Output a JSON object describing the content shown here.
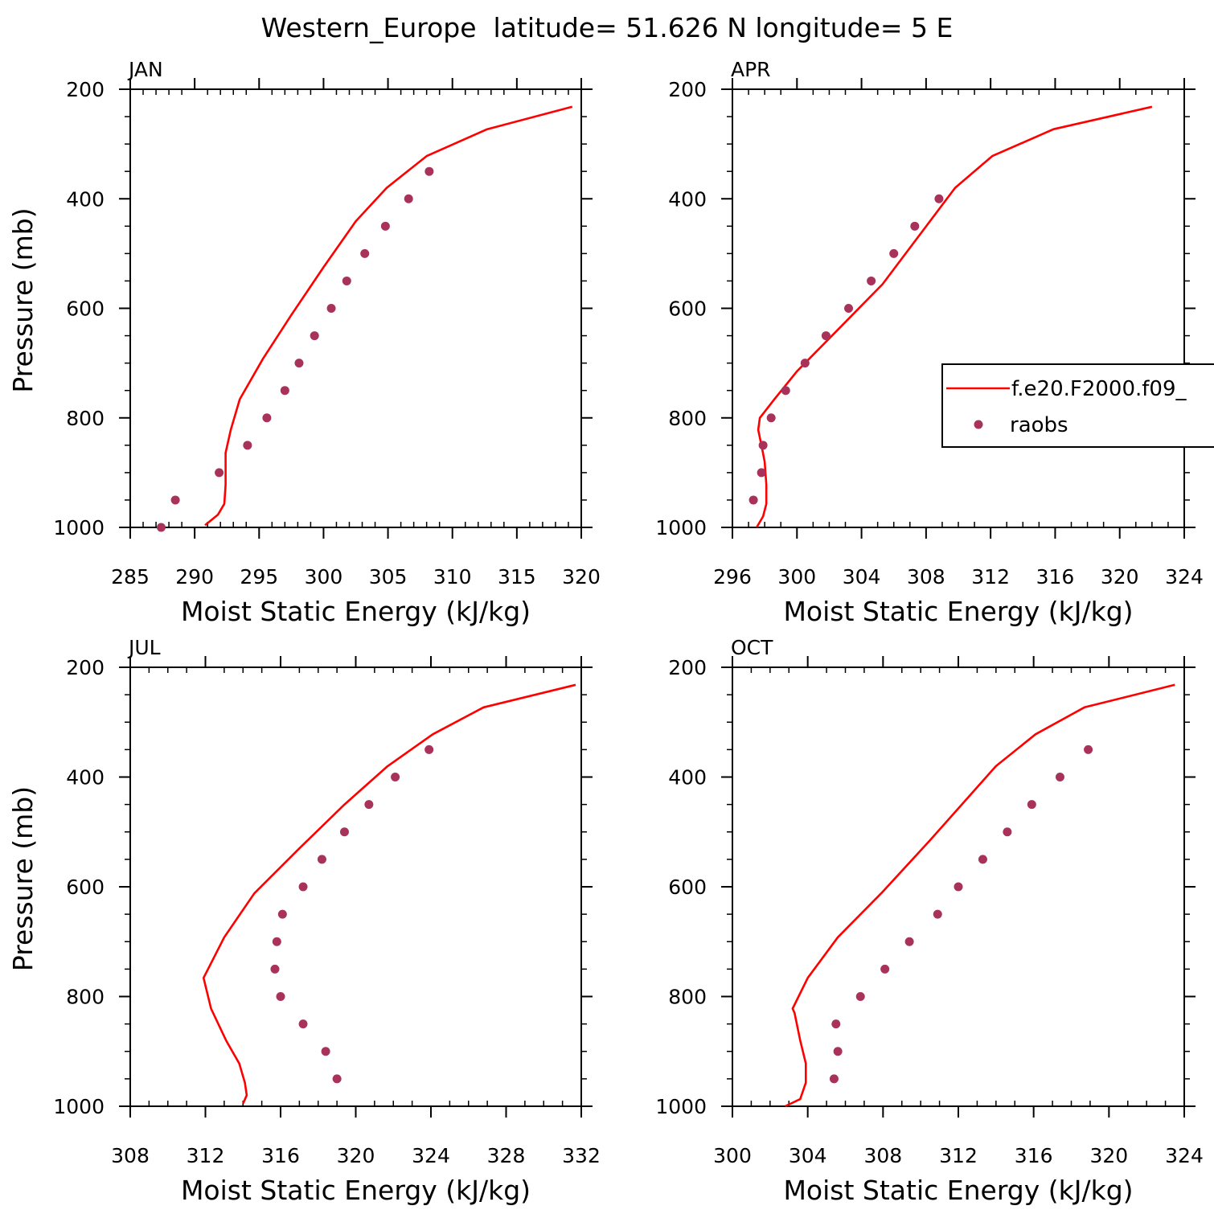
{
  "page": {
    "title": "Western_Europe  latitude= 51.626 N longitude= 5 E"
  },
  "colors": {
    "model": "#ff0000",
    "obs": "#a8325a",
    "axis": "#000000"
  },
  "legend": {
    "model_label": "f.e20.F2000.f09_",
    "obs_label": "raobs"
  },
  "chart_data": [
    {
      "type": "line",
      "title": "JAN",
      "xlabel": "Moist Static Energy (kJ/kg)",
      "ylabel": "Pressure (mb)",
      "xlim": [
        285,
        320
      ],
      "ylim": [
        1000,
        200
      ],
      "xticks": [
        285,
        290,
        295,
        300,
        305,
        310,
        315,
        320
      ],
      "xminor": 1,
      "yticks": [
        200,
        400,
        600,
        800,
        1000
      ],
      "yminor": 50,
      "series": [
        {
          "name": "f.e20.F2000.f09_",
          "x": [
            290.8,
            291.8,
            292.3,
            292.4,
            292.4,
            292.8,
            293.5,
            295.3,
            297.5,
            300,
            302.5,
            304.9,
            308,
            312.7,
            319.3
          ],
          "y": [
            996,
            977,
            957,
            922,
            864,
            822,
            766,
            692,
            612,
            525,
            441,
            380,
            322,
            273,
            232
          ]
        },
        {
          "name": "raobs",
          "x": [
            287.4,
            288.5,
            291.9,
            294.1,
            295.6,
            297,
            298.1,
            299.3,
            300.6,
            301.8,
            303.2,
            304.8,
            306.6,
            308.2
          ],
          "y": [
            1000,
            950,
            900,
            850,
            800,
            750,
            700,
            650,
            600,
            550,
            500,
            450,
            400,
            350
          ]
        }
      ]
    },
    {
      "type": "line",
      "title": "APR",
      "xlabel": "Moist Static Energy (kJ/kg)",
      "ylabel": "",
      "xlim": [
        296,
        324
      ],
      "ylim": [
        1000,
        200
      ],
      "xticks": [
        296,
        300,
        304,
        308,
        312,
        316,
        320,
        324
      ],
      "xminor": 1,
      "yticks": [
        200,
        400,
        600,
        800,
        1000
      ],
      "yminor": 50,
      "series": [
        {
          "name": "f.e20.F2000.f09_",
          "x": [
            297.5,
            297.9,
            298.1,
            298.1,
            298,
            297.8,
            297.6,
            297.7,
            298.6,
            300,
            302.3,
            305.3,
            309.8,
            312.1,
            315.9,
            322
          ],
          "y": [
            1000,
            980,
            957,
            922,
            880,
            850,
            822,
            800,
            766,
            715,
            646,
            556,
            380,
            322,
            273,
            232
          ]
        },
        {
          "name": "raobs",
          "x": [
            297.3,
            297.8,
            297.9,
            298.4,
            299.3,
            300.5,
            301.8,
            303.2,
            304.6,
            306,
            307.3,
            308.8
          ],
          "y": [
            950,
            900,
            850,
            800,
            750,
            700,
            650,
            600,
            550,
            500,
            450,
            400
          ]
        }
      ]
    },
    {
      "type": "line",
      "title": "JUL",
      "xlabel": "Moist Static Energy (kJ/kg)",
      "ylabel": "Pressure (mb)",
      "xlim": [
        308,
        332
      ],
      "ylim": [
        1000,
        200
      ],
      "xticks": [
        308,
        312,
        316,
        320,
        324,
        328,
        332
      ],
      "xminor": 1,
      "yticks": [
        200,
        400,
        600,
        800,
        1000
      ],
      "yminor": 50,
      "series": [
        {
          "name": "f.e20.F2000.f09_",
          "x": [
            314,
            314.2,
            314.1,
            313.8,
            313.1,
            312.3,
            311.9,
            313,
            314.6,
            317,
            319.4,
            321.7,
            324.1,
            326.8,
            331.7
          ],
          "y": [
            995,
            980,
            957,
            922,
            880,
            822,
            766,
            692,
            612,
            530,
            450,
            380,
            322,
            273,
            232
          ]
        },
        {
          "name": "raobs",
          "x": [
            319,
            318.4,
            317.2,
            316,
            315.7,
            315.8,
            316.1,
            317.2,
            318.2,
            319.4,
            320.7,
            322.1,
            323.9
          ],
          "y": [
            950,
            900,
            850,
            800,
            750,
            700,
            650,
            600,
            550,
            500,
            450,
            400,
            350
          ]
        }
      ]
    },
    {
      "type": "line",
      "title": "OCT",
      "xlabel": "Moist Static Energy (kJ/kg)",
      "ylabel": "",
      "xlim": [
        300,
        324
      ],
      "ylim": [
        1000,
        200
      ],
      "xticks": [
        300,
        304,
        308,
        312,
        316,
        320,
        324
      ],
      "xminor": 1,
      "yticks": [
        200,
        400,
        600,
        800,
        1000
      ],
      "yminor": 50,
      "series": [
        {
          "name": "f.e20.F2000.f09_",
          "x": [
            302.8,
            303.6,
            303.9,
            303.9,
            303.6,
            303.3,
            303.2,
            304,
            305.6,
            307.9,
            310.5,
            314,
            316.1,
            318.7,
            323.5
          ],
          "y": [
            1000,
            987,
            957,
            922,
            880,
            830,
            822,
            766,
            692,
            612,
            515,
            380,
            322,
            273,
            232
          ]
        },
        {
          "name": "raobs",
          "x": [
            305.4,
            305.6,
            305.5,
            306.8,
            308.1,
            309.4,
            310.9,
            312,
            313.3,
            314.6,
            315.9,
            317.4,
            318.9
          ],
          "y": [
            950,
            900,
            850,
            800,
            750,
            700,
            650,
            600,
            550,
            500,
            450,
            400,
            350
          ]
        }
      ]
    }
  ]
}
